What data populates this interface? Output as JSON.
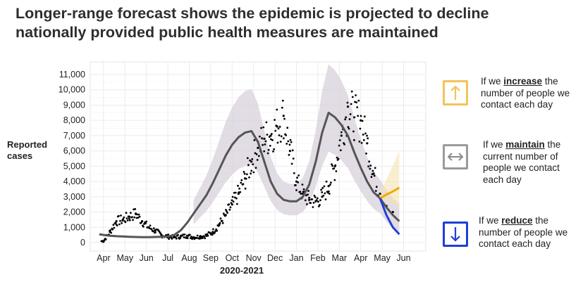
{
  "title_line1": "Longer-range forecast shows the epidemic is projected to decline",
  "title_line2": "nationally provided public health measures are maintained",
  "colors": {
    "history": "#000000",
    "fit": "#555555",
    "band": "#d8d0dc",
    "increase": "#f2a900",
    "maintain": "#555555",
    "reduce": "#1f3fd6",
    "increase_band": "#f7e2b0"
  },
  "legend": [
    {
      "key": "increase",
      "icon": "arrow-up-icon",
      "prefix": "If we ",
      "bold": "increase",
      "suffix": " the",
      "line2": "number of people we",
      "line3": "contact each day",
      "line4": ""
    },
    {
      "key": "maintain",
      "icon": "arrow-left-right-icon",
      "prefix": "If we ",
      "bold": "maintain",
      "suffix": " the",
      "line2": "current number of",
      "line3": "people we contact",
      "line4": "each day"
    },
    {
      "key": "reduce",
      "icon": "arrow-down-icon",
      "prefix": "If we ",
      "bold": "reduce",
      "suffix": " the",
      "line2": "number of people we",
      "line3": "contact each day",
      "line4": ""
    }
  ],
  "chart_data": {
    "type": "line",
    "xlabel": "2020-2021",
    "ylabel": "Reported cases",
    "ylim": [
      0,
      11000
    ],
    "yticks": [
      0,
      1000,
      2000,
      3000,
      4000,
      5000,
      6000,
      7000,
      8000,
      9000,
      10000,
      11000
    ],
    "ytick_labels": [
      "0",
      "1,000",
      "2,000",
      "3,000",
      "4,000",
      "5,000",
      "6,000",
      "7,000",
      "8,000",
      "9,000",
      "10,000",
      "11,000"
    ],
    "xticks": [
      "Apr",
      "May",
      "Jun",
      "Jul",
      "Aug",
      "Sep",
      "Oct",
      "Nov",
      "Dec",
      "Jan",
      "Feb",
      "Mar",
      "Apr",
      "May",
      "Jun"
    ],
    "grid": true,
    "series": [
      {
        "kind": "reported",
        "x": [
          0.0,
          0.3,
          0.6,
          0.9,
          1.2,
          1.5,
          1.8,
          2.1,
          2.4,
          2.7,
          3.0,
          3.3,
          3.6,
          3.9,
          4.2,
          4.5,
          4.8,
          5.1,
          5.4,
          5.7,
          6.0,
          6.3,
          6.6,
          6.9,
          7.2,
          7.5,
          7.8,
          8.1,
          8.4,
          8.7,
          9.0,
          9.3,
          9.6,
          9.9,
          10.2,
          10.5,
          10.8,
          11.1,
          11.4,
          11.7,
          12.0,
          12.3,
          12.6,
          12.9,
          13.2,
          13.5
        ],
        "y": [
          100,
          700,
          1400,
          1500,
          1700,
          1900,
          1400,
          1000,
          800,
          500,
          400,
          350,
          400,
          450,
          350,
          400,
          450,
          700,
          1200,
          1800,
          2500,
          3200,
          4200,
          5300,
          6200,
          6800,
          7000,
          7600,
          8300,
          6000,
          4000,
          3200,
          2800,
          2700,
          3000,
          3700,
          5000,
          7000,
          8900,
          8200,
          8000,
          6500,
          4500,
          3200,
          2400,
          2000
        ]
      },
      {
        "kind": "fit",
        "x": [
          -0.2,
          0,
          0.3,
          0.6,
          0.9,
          1.2,
          1.5,
          1.8,
          2.1,
          2.4,
          2.7,
          3.0,
          3.3,
          3.6,
          3.9,
          4.2,
          4.5,
          4.8,
          5.1,
          5.4,
          5.7,
          6.0,
          6.3,
          6.6,
          6.9,
          7.2,
          7.5,
          7.8,
          8.1,
          8.4,
          8.7,
          9.0,
          9.3,
          9.6,
          9.9,
          10.2,
          10.5,
          10.8,
          11.1,
          11.4,
          11.7,
          12.0,
          12.3,
          12.6,
          12.9
        ],
        "y": [
          550,
          500,
          450,
          420,
          400,
          380,
          370,
          360,
          360,
          370,
          380,
          400,
          500,
          800,
          1300,
          1900,
          2500,
          3100,
          3900,
          4800,
          5700,
          6400,
          6900,
          7200,
          7300,
          6600,
          5300,
          4000,
          3200,
          2800,
          2700,
          2700,
          3000,
          3800,
          5300,
          7200,
          8500,
          8200,
          7700,
          7000,
          5900,
          4900,
          4000,
          3300,
          2900
        ]
      },
      {
        "kind": "maintain",
        "name": "maintain",
        "x": [
          12.9,
          13.2,
          13.5,
          13.8
        ],
        "y": [
          2900,
          2300,
          1800,
          1400
        ]
      },
      {
        "kind": "increase",
        "name": "increase",
        "x": [
          12.9,
          13.2,
          13.5,
          13.8
        ],
        "y": [
          2900,
          3150,
          3350,
          3600
        ]
      },
      {
        "kind": "reduce",
        "name": "reduce",
        "x": [
          12.9,
          13.2,
          13.5,
          13.8
        ],
        "y": [
          2900,
          1800,
          1000,
          550
        ]
      }
    ]
  }
}
